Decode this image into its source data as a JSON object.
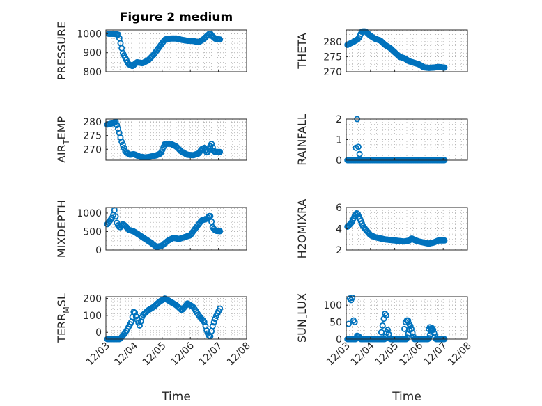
{
  "figure": {
    "title": "Figure 2 medium",
    "marker_color": "#0072BD",
    "x_axis": {
      "label": "Time",
      "ticks": [
        0,
        1,
        2,
        3,
        4,
        5
      ],
      "tick_labels": [
        "12/03",
        "12/04",
        "12/05",
        "12/06",
        "12/07",
        "12/08"
      ],
      "xlim": [
        0,
        5
      ],
      "grid": true
    }
  },
  "chart_data": [
    {
      "type": "scatter",
      "panel": "pressure",
      "ylabel_main": "PRESSURE",
      "ylabel_sub": "",
      "ylabel_tail": "",
      "ylim": [
        800,
        1020
      ],
      "yticks": [
        800,
        900,
        1000
      ],
      "grid": true,
      "knots": [
        [
          0.1,
          1000
        ],
        [
          0.3,
          1000
        ],
        [
          0.45,
          995
        ],
        [
          0.6,
          900
        ],
        [
          0.8,
          840
        ],
        [
          0.95,
          830
        ],
        [
          1.1,
          850
        ],
        [
          1.3,
          845
        ],
        [
          1.5,
          860
        ],
        [
          1.7,
          890
        ],
        [
          1.9,
          930
        ],
        [
          2.1,
          970
        ],
        [
          2.3,
          975
        ],
        [
          2.5,
          975
        ],
        [
          2.7,
          968
        ],
        [
          2.9,
          963
        ],
        [
          3.1,
          962
        ],
        [
          3.3,
          955
        ],
        [
          3.5,
          975
        ],
        [
          3.6,
          990
        ],
        [
          3.7,
          1003
        ],
        [
          3.8,
          985
        ],
        [
          3.9,
          972
        ],
        [
          4.05,
          970
        ]
      ],
      "n": 95
    },
    {
      "type": "scatter",
      "panel": "theta",
      "ylabel_main": "THETA",
      "ylabel_sub": "",
      "ylabel_tail": "",
      "ylim": [
        270,
        284
      ],
      "yticks": [
        270,
        275,
        280
      ],
      "grid": true,
      "knots": [
        [
          0.05,
          279
        ],
        [
          0.3,
          280
        ],
        [
          0.5,
          281
        ],
        [
          0.65,
          283.5
        ],
        [
          0.8,
          283.5
        ],
        [
          1.0,
          282
        ],
        [
          1.2,
          281
        ],
        [
          1.4,
          280.5
        ],
        [
          1.6,
          279
        ],
        [
          1.8,
          278
        ],
        [
          2.0,
          276.5
        ],
        [
          2.2,
          275
        ],
        [
          2.4,
          274.5
        ],
        [
          2.6,
          273.5
        ],
        [
          2.8,
          273
        ],
        [
          3.0,
          272.5
        ],
        [
          3.2,
          271.5
        ],
        [
          3.4,
          271.3
        ],
        [
          3.6,
          271.4
        ],
        [
          3.8,
          271.6
        ],
        [
          4.05,
          271.4
        ]
      ],
      "n": 95
    },
    {
      "type": "scatter",
      "panel": "air_temp",
      "ylabel_main": "AIR",
      "ylabel_sub": "T",
      "ylabel_tail": "EMP",
      "ylim": [
        266,
        281
      ],
      "yticks": [
        270,
        275,
        280
      ],
      "grid": true,
      "knots": [
        [
          0.05,
          279
        ],
        [
          0.25,
          279.5
        ],
        [
          0.35,
          280
        ],
        [
          0.45,
          277
        ],
        [
          0.55,
          273
        ],
        [
          0.7,
          269
        ],
        [
          0.85,
          268
        ],
        [
          1.0,
          268.2
        ],
        [
          1.2,
          267.3
        ],
        [
          1.4,
          267
        ],
        [
          1.6,
          267.3
        ],
        [
          1.8,
          267.8
        ],
        [
          1.95,
          268.5
        ],
        [
          2.1,
          272
        ],
        [
          2.3,
          272
        ],
        [
          2.5,
          271
        ],
        [
          2.7,
          269
        ],
        [
          2.9,
          268
        ],
        [
          3.1,
          267.8
        ],
        [
          3.3,
          268.5
        ],
        [
          3.4,
          270
        ],
        [
          3.5,
          270.5
        ],
        [
          3.6,
          268.5
        ],
        [
          3.75,
          272
        ],
        [
          3.85,
          269
        ],
        [
          4.05,
          269
        ]
      ],
      "n": 95
    },
    {
      "type": "scatter",
      "panel": "rainfall",
      "ylabel_main": "RAINFALL",
      "ylabel_sub": "",
      "ylabel_tail": "",
      "ylim": [
        0,
        2
      ],
      "yticks": [
        0,
        1,
        2
      ],
      "grid": true,
      "knots": [
        [
          0.05,
          0
        ],
        [
          4.05,
          0
        ]
      ],
      "n": 95,
      "extra_points": [
        [
          0.4,
          0.6
        ],
        [
          0.45,
          2.0
        ],
        [
          0.5,
          0.65
        ],
        [
          0.55,
          0.3
        ]
      ]
    },
    {
      "type": "scatter",
      "panel": "mixdepth",
      "ylabel_main": "MIXDEPTH",
      "ylabel_sub": "",
      "ylabel_tail": "",
      "ylim": [
        0,
        1150
      ],
      "yticks": [
        0,
        500,
        1000
      ],
      "grid": true,
      "knots": [
        [
          0.05,
          700
        ],
        [
          0.15,
          800
        ],
        [
          0.25,
          900
        ],
        [
          0.3,
          1100
        ],
        [
          0.4,
          700
        ],
        [
          0.5,
          600
        ],
        [
          0.6,
          700
        ],
        [
          0.7,
          650
        ],
        [
          0.8,
          550
        ],
        [
          1.0,
          500
        ],
        [
          1.2,
          400
        ],
        [
          1.4,
          300
        ],
        [
          1.6,
          200
        ],
        [
          1.8,
          80
        ],
        [
          2.0,
          120
        ],
        [
          2.2,
          250
        ],
        [
          2.4,
          330
        ],
        [
          2.6,
          300
        ],
        [
          2.8,
          350
        ],
        [
          3.0,
          400
        ],
        [
          3.2,
          600
        ],
        [
          3.4,
          800
        ],
        [
          3.6,
          850
        ],
        [
          3.7,
          950
        ],
        [
          3.8,
          600
        ],
        [
          3.9,
          520
        ],
        [
          4.05,
          510
        ]
      ],
      "n": 95
    },
    {
      "type": "scatter",
      "panel": "h2omixra",
      "ylabel_main": "H2OMIXRA",
      "ylabel_sub": "",
      "ylabel_tail": "",
      "ylim": [
        2,
        6
      ],
      "yticks": [
        2,
        4,
        6
      ],
      "grid": true,
      "knots": [
        [
          0.05,
          4.2
        ],
        [
          0.2,
          4.5
        ],
        [
          0.35,
          5.2
        ],
        [
          0.45,
          5.5
        ],
        [
          0.55,
          5.0
        ],
        [
          0.7,
          4.2
        ],
        [
          0.85,
          3.8
        ],
        [
          1.0,
          3.4
        ],
        [
          1.2,
          3.2
        ],
        [
          1.4,
          3.1
        ],
        [
          1.6,
          3.0
        ],
        [
          1.8,
          2.95
        ],
        [
          2.0,
          2.9
        ],
        [
          2.2,
          2.85
        ],
        [
          2.4,
          2.8
        ],
        [
          2.6,
          2.9
        ],
        [
          2.7,
          3.1
        ],
        [
          2.8,
          2.95
        ],
        [
          3.0,
          2.8
        ],
        [
          3.2,
          2.7
        ],
        [
          3.4,
          2.6
        ],
        [
          3.6,
          2.7
        ],
        [
          3.8,
          2.9
        ],
        [
          4.05,
          2.9
        ]
      ],
      "n": 95
    },
    {
      "type": "scatter",
      "panel": "terr_msl",
      "ylabel_main": "TERR",
      "ylabel_sub": "M",
      "ylabel_tail": "SL",
      "ylim": [
        -40,
        210
      ],
      "yticks": [
        0,
        100,
        200
      ],
      "grid": true,
      "knots": [
        [
          0.05,
          -40
        ],
        [
          0.5,
          -40
        ],
        [
          0.7,
          0
        ],
        [
          0.9,
          60
        ],
        [
          1.0,
          130
        ],
        [
          1.1,
          80
        ],
        [
          1.2,
          40
        ],
        [
          1.3,
          100
        ],
        [
          1.5,
          130
        ],
        [
          1.7,
          150
        ],
        [
          1.9,
          180
        ],
        [
          2.1,
          200
        ],
        [
          2.3,
          180
        ],
        [
          2.5,
          160
        ],
        [
          2.7,
          130
        ],
        [
          2.9,
          170
        ],
        [
          3.1,
          150
        ],
        [
          3.3,
          100
        ],
        [
          3.5,
          60
        ],
        [
          3.6,
          0
        ],
        [
          3.7,
          -30
        ],
        [
          3.8,
          40
        ],
        [
          3.9,
          90
        ],
        [
          4.05,
          140
        ]
      ],
      "n": 95
    },
    {
      "type": "scatter",
      "panel": "sun_flux",
      "ylabel_main": "SUN",
      "ylabel_sub": "F",
      "ylabel_tail": "LUX",
      "ylim": [
        0,
        125
      ],
      "yticks": [
        0,
        50,
        100
      ],
      "grid": true,
      "knots": [
        [
          0.05,
          0
        ],
        [
          0.4,
          0
        ],
        [
          0.5,
          10
        ],
        [
          0.6,
          0
        ],
        [
          1.6,
          0
        ],
        [
          1.7,
          30
        ],
        [
          1.8,
          0
        ],
        [
          2.5,
          0
        ],
        [
          2.65,
          40
        ],
        [
          2.8,
          0
        ],
        [
          3.4,
          0
        ],
        [
          3.55,
          35
        ],
        [
          3.7,
          0
        ],
        [
          4.05,
          0
        ]
      ],
      "n": 95,
      "extra_points": [
        [
          0.1,
          45
        ],
        [
          0.15,
          120
        ],
        [
          0.2,
          115
        ],
        [
          0.25,
          122
        ],
        [
          0.3,
          55
        ],
        [
          0.35,
          50
        ],
        [
          1.5,
          40
        ],
        [
          1.55,
          60
        ],
        [
          1.6,
          75
        ],
        [
          1.65,
          70
        ],
        [
          1.45,
          20
        ],
        [
          2.4,
          30
        ],
        [
          2.45,
          50
        ],
        [
          2.5,
          55
        ],
        [
          2.55,
          55
        ],
        [
          2.6,
          45
        ],
        [
          3.4,
          30
        ],
        [
          3.45,
          35
        ],
        [
          3.5,
          30
        ],
        [
          3.55,
          28
        ],
        [
          0.45,
          10
        ],
        [
          0.6,
          2
        ]
      ]
    }
  ]
}
